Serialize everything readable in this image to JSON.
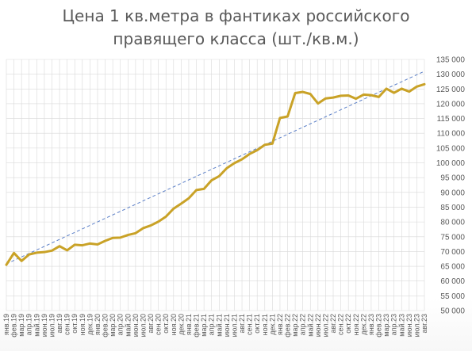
{
  "chart_data": {
    "type": "line",
    "title": "Цена 1 кв.метра в фантиках российского правящего класса (шт./кв.м.)",
    "title_lines": [
      "Цена 1 кв.метра в фантиках российского",
      "правящего класса (шт./кв.м.)"
    ],
    "xlabel": "",
    "ylabel": "",
    "ylim": [
      50000,
      135000
    ],
    "y_tick_step": 5000,
    "y_tick_labels": [
      "135 000",
      "130 000",
      "125 000",
      "120 000",
      "115 000",
      "110 000",
      "105 000",
      "100 000",
      "95 000",
      "90 000",
      "85 000",
      "80 000",
      "75 000",
      "70 000",
      "65 000",
      "60 000",
      "55 000",
      "50 000"
    ],
    "y_axis_side": "right",
    "grid": true,
    "legend": "none",
    "categories": [
      "янв.19",
      "фев.19",
      "мар.19",
      "апр.19",
      "май.19",
      "июн.19",
      "июл.19",
      "авг.19",
      "сен.19",
      "окт.19",
      "ноя.19",
      "дек.19",
      "янв.20",
      "фев.20",
      "мар.20",
      "апр.20",
      "май.20",
      "июн.20",
      "июл.20",
      "авг.20",
      "сен.20",
      "окт.20",
      "ноя.20",
      "дек.20",
      "янв.21",
      "фев.21",
      "мар.21",
      "апр.21",
      "май.21",
      "июн.21",
      "июл.21",
      "авг.21",
      "сен.21",
      "окт.21",
      "ноя.21",
      "дек.21",
      "янв.22",
      "фев.22",
      "мар.22",
      "апр.22",
      "май.22",
      "июн.22",
      "июл.22",
      "авг.22",
      "сен.22",
      "окт.22",
      "ноя.22",
      "дек.22",
      "янв.23",
      "фев.23",
      "мар.23",
      "апр.23",
      "май.23",
      "июн.23",
      "июл.23",
      "авг.23"
    ],
    "series": [
      {
        "values": [
          65500,
          69500,
          66800,
          69000,
          69600,
          69800,
          70300,
          71800,
          70400,
          72300,
          72100,
          72700,
          72400,
          73600,
          74600,
          74700,
          75600,
          76200,
          77900,
          78800,
          80100,
          81800,
          84500,
          86200,
          88000,
          90800,
          91200,
          94100,
          95500,
          98200,
          99900,
          101200,
          103000,
          104300,
          106100,
          106500,
          115200,
          115700,
          123600,
          124000,
          123300,
          120100,
          121800,
          122100,
          122700,
          122800,
          121700,
          123100,
          122900,
          122300,
          125100,
          123700,
          125100,
          124100,
          125800,
          126600
        ],
        "color": "#c9a227"
      },
      {
        "type": "trendline",
        "start": 65800,
        "end": 131000,
        "color": "#5b7fc7"
      }
    ],
    "colors": {
      "grid": "#d9d9d9",
      "text": "#595959"
    }
  }
}
